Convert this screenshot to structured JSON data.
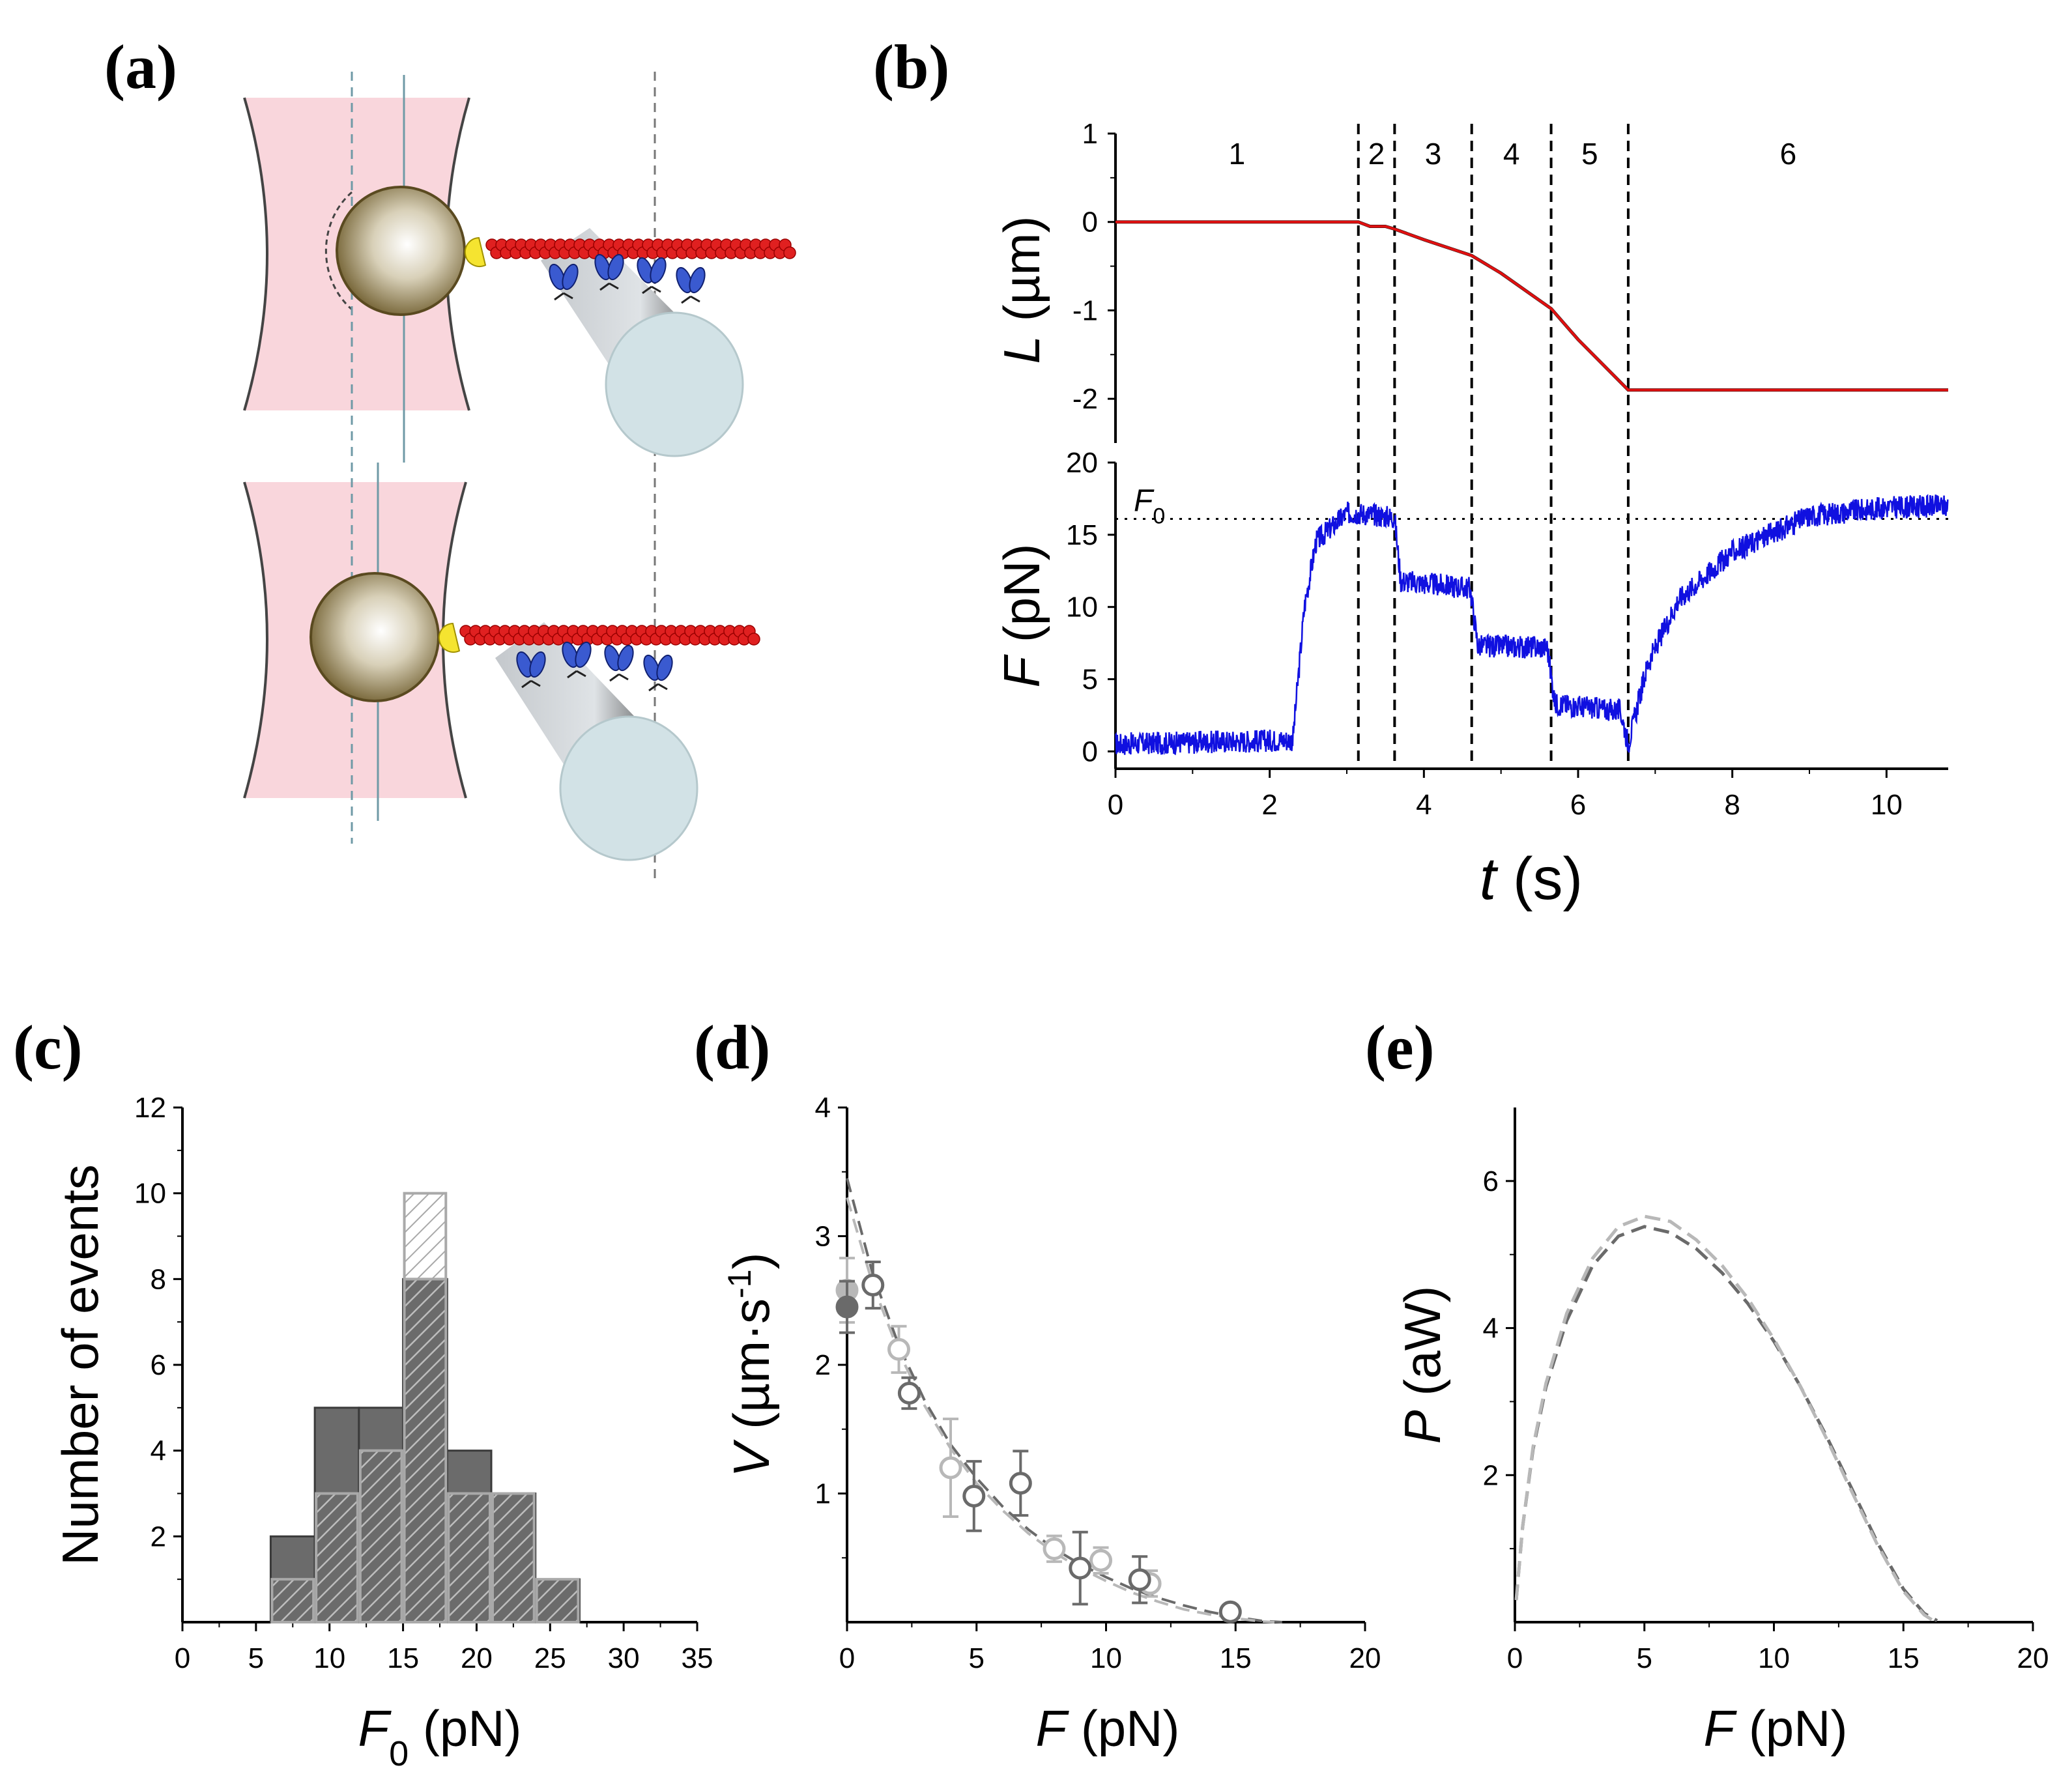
{
  "panels": {
    "a": "(a)",
    "b": "(b)",
    "c": "(c)",
    "d": "(d)",
    "e": "(e)"
  },
  "colors": {
    "trap": "#f9d6dc",
    "bead": "#7a6a3a",
    "myosin_head": "#3a5ad0",
    "actin": "#e02020",
    "length_trace": "#e01010",
    "force_trace": "#1010e0",
    "hist_dark": "#6b6b6b",
    "hist_light": "#a9a9a9",
    "series_dark": "#6a6a6a",
    "series_light": "#b8b8b8"
  },
  "chart_data": [
    {
      "panel": "b-top",
      "type": "line",
      "xlabel": "",
      "ylabel_var": "L",
      "ylabel_unit": "(µm)",
      "ylim": [
        -2.5,
        1
      ],
      "yticks": [
        "1",
        "0",
        "-1",
        "-2"
      ],
      "xlim": [
        0,
        10.8
      ],
      "segments": {
        "labels": [
          "1",
          "2",
          "3",
          "4",
          "5",
          "6"
        ],
        "boundaries": [
          3.15,
          3.62,
          4.62,
          5.65,
          6.65
        ]
      },
      "series": [
        {
          "x": [
            0,
            3.15,
            3.3,
            3.5,
            3.62,
            4.0,
            4.62,
            5.0,
            5.65,
            6.0,
            6.65,
            10.8
          ],
          "y": [
            0,
            0,
            -0.05,
            -0.05,
            -0.08,
            -0.2,
            -0.38,
            -0.58,
            -0.98,
            -1.33,
            -1.9,
            -1.9
          ]
        }
      ]
    },
    {
      "panel": "b-bottom",
      "type": "line",
      "xlabel_var": "t",
      "xlabel_unit": "(s)",
      "ylabel_var": "F",
      "ylabel_unit": "(pN)",
      "xlim": [
        0,
        10.8
      ],
      "ylim": [
        -1.2,
        20
      ],
      "xticks": [
        "0",
        "2",
        "4",
        "6",
        "8",
        "10"
      ],
      "yticks": [
        "0",
        "5",
        "10",
        "15",
        "20"
      ],
      "reference_line": {
        "label": "F",
        "label_sub": "0",
        "y": 16.1
      },
      "series": [
        {
          "x": [
            0,
            2.3,
            2.45,
            2.6,
            3.0,
            3.15,
            3.62,
            3.7,
            4.6,
            4.7,
            5.6,
            5.7,
            6.55,
            6.65,
            6.9,
            7.3,
            8.0,
            9.0,
            10.0,
            10.8
          ],
          "y": [
            0.5,
            0.8,
            10,
            14.5,
            16.5,
            16.5,
            16.2,
            11.8,
            11.3,
            7.3,
            7.2,
            3.3,
            2.8,
            0.5,
            6,
            10.5,
            13.8,
            16.3,
            16.9,
            17
          ]
        }
      ]
    },
    {
      "panel": "c",
      "type": "bar",
      "xlabel_var": "F",
      "xlabel_sub": "0",
      "xlabel_unit": "(pN)",
      "ylabel": "Number of events",
      "xlim": [
        0,
        35
      ],
      "ylim": [
        0,
        12
      ],
      "xticks": [
        "0",
        "5",
        "10",
        "15",
        "20",
        "25",
        "30",
        "35"
      ],
      "yticks": [
        "2",
        "4",
        "6",
        "8",
        "10",
        "12"
      ],
      "bin_edges": [
        6,
        9,
        12,
        15,
        18,
        21,
        24,
        27
      ],
      "series": [
        {
          "values": [
            2,
            5,
            5,
            8,
            4,
            3,
            1
          ]
        },
        {
          "values": [
            1,
            3,
            4,
            10,
            3,
            3,
            1
          ]
        }
      ]
    },
    {
      "panel": "d",
      "type": "scatter",
      "xlabel_var": "F",
      "xlabel_unit": "(pN)",
      "ylabel_var": "V",
      "ylabel_unit": "(µm·s",
      "ylabel_sup": "-1",
      "ylabel_tail": ")",
      "xlim": [
        0,
        20
      ],
      "ylim": [
        0,
        4
      ],
      "xticks": [
        "0",
        "5",
        "10",
        "15",
        "20"
      ],
      "yticks": [
        "1",
        "2",
        "3",
        "4"
      ],
      "series": [
        {
          "x": [
            0,
            1.0,
            2.4,
            4.9,
            6.7,
            9.0,
            11.3,
            14.8
          ],
          "y": [
            2.45,
            2.62,
            1.78,
            0.98,
            1.08,
            0.42,
            0.33,
            0.08
          ],
          "err": [
            0.2,
            0.18,
            0.12,
            0.27,
            0.25,
            0.28,
            0.18,
            0.04
          ],
          "filled_first": true
        },
        {
          "x": [
            0,
            2.0,
            4.0,
            8.0,
            9.8,
            11.7
          ],
          "y": [
            2.58,
            2.12,
            1.2,
            0.57,
            0.48,
            0.3
          ],
          "err": [
            0.25,
            0.18,
            0.38,
            0.1,
            0.1,
            0.1
          ],
          "filled_first": true
        }
      ],
      "fits": [
        {
          "x": [
            0,
            1,
            2,
            3,
            4,
            5,
            6,
            7,
            8,
            9,
            10,
            11,
            12,
            13,
            14,
            15,
            16,
            16.8
          ],
          "y": [
            3.45,
            2.7,
            2.15,
            1.72,
            1.38,
            1.12,
            0.9,
            0.72,
            0.57,
            0.45,
            0.35,
            0.26,
            0.19,
            0.13,
            0.08,
            0.04,
            0.01,
            0
          ]
        },
        {
          "x": [
            0,
            1,
            2,
            3,
            4,
            5,
            6,
            7,
            8,
            9,
            10,
            11,
            12,
            13,
            14,
            15,
            16,
            16.5
          ],
          "y": [
            3.3,
            2.62,
            2.1,
            1.68,
            1.35,
            1.08,
            0.87,
            0.69,
            0.54,
            0.42,
            0.32,
            0.23,
            0.16,
            0.1,
            0.06,
            0.03,
            0.005,
            0
          ]
        }
      ]
    },
    {
      "panel": "e",
      "type": "line",
      "xlabel_var": "F",
      "xlabel_unit": "(pN)",
      "ylabel_var": "P",
      "ylabel_unit": "(aW)",
      "xlim": [
        0,
        20
      ],
      "ylim": [
        0,
        7
      ],
      "xticks": [
        "0",
        "5",
        "10",
        "15",
        "20"
      ],
      "yticks": [
        "2",
        "4",
        "6"
      ],
      "series": [
        {
          "x": [
            0.05,
            0.3,
            0.7,
            1.2,
            2,
            3,
            4,
            5,
            6,
            7,
            8,
            9,
            10,
            11,
            12,
            13,
            14,
            15,
            15.8,
            16.3
          ],
          "y": [
            0.3,
            1.3,
            2.35,
            3.2,
            4.1,
            4.85,
            5.25,
            5.38,
            5.3,
            5.08,
            4.75,
            4.33,
            3.82,
            3.22,
            2.55,
            1.82,
            1.08,
            0.45,
            0.12,
            0.02
          ]
        },
        {
          "x": [
            0.05,
            0.3,
            0.7,
            1.2,
            2,
            3,
            4,
            5,
            6,
            7,
            8,
            9,
            10,
            11,
            12,
            13,
            14,
            15,
            15.8,
            16.2
          ],
          "y": [
            0.3,
            1.3,
            2.38,
            3.25,
            4.2,
            4.95,
            5.38,
            5.52,
            5.45,
            5.2,
            4.85,
            4.4,
            3.85,
            3.22,
            2.52,
            1.78,
            1.05,
            0.42,
            0.1,
            0.01
          ]
        }
      ]
    }
  ]
}
